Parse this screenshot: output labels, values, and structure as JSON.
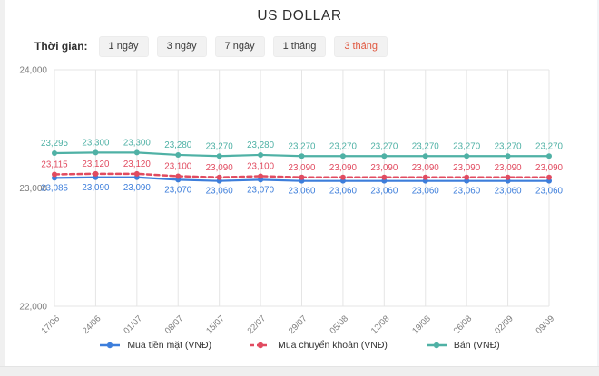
{
  "page": {
    "title": "US DOLLAR",
    "filter_label": "Thời gian:",
    "filters": [
      {
        "label": "1 ngày",
        "active": false
      },
      {
        "label": "3 ngày",
        "active": false
      },
      {
        "label": "7 ngày",
        "active": false
      },
      {
        "label": "1 tháng",
        "active": false
      },
      {
        "label": "3 tháng",
        "active": true
      }
    ],
    "accent_color": "#e0573f"
  },
  "chart_data": {
    "type": "line",
    "title": "US DOLLAR",
    "xlabel": "",
    "ylabel": "",
    "grid": true,
    "legend_position": "bottom",
    "ylim": [
      22000,
      24000
    ],
    "yticks": [
      24000,
      23000,
      22000
    ],
    "categories": [
      "17/06",
      "24/06",
      "01/07",
      "08/07",
      "15/07",
      "22/07",
      "29/07",
      "05/08",
      "12/08",
      "19/08",
      "26/08",
      "02/09",
      "09/09"
    ],
    "series": [
      {
        "name": "Mua tiền mặt (VNĐ)",
        "slug": "mua-tien-mat",
        "color": "#3d7edb",
        "dashed": false,
        "label_position": "below",
        "values": [
          23085,
          23090,
          23090,
          23070,
          23060,
          23070,
          23060,
          23060,
          23060,
          23060,
          23060,
          23060,
          23060
        ]
      },
      {
        "name": "Mua chuyển khoản (VNĐ)",
        "slug": "mua-chuyen-khoan",
        "color": "#e14b60",
        "dashed": true,
        "label_position": "above",
        "values": [
          23115,
          23120,
          23120,
          23100,
          23090,
          23100,
          23090,
          23090,
          23090,
          23090,
          23090,
          23090,
          23090
        ]
      },
      {
        "name": "Bán (VNĐ)",
        "slug": "ban",
        "color": "#4fb1a5",
        "dashed": false,
        "label_position": "above",
        "values": [
          23295,
          23300,
          23300,
          23280,
          23270,
          23280,
          23270,
          23270,
          23270,
          23270,
          23270,
          23270,
          23270
        ]
      }
    ],
    "colors": {
      "gridline": "#e5e5e5",
      "axis_text": "#7d7d7d"
    }
  }
}
